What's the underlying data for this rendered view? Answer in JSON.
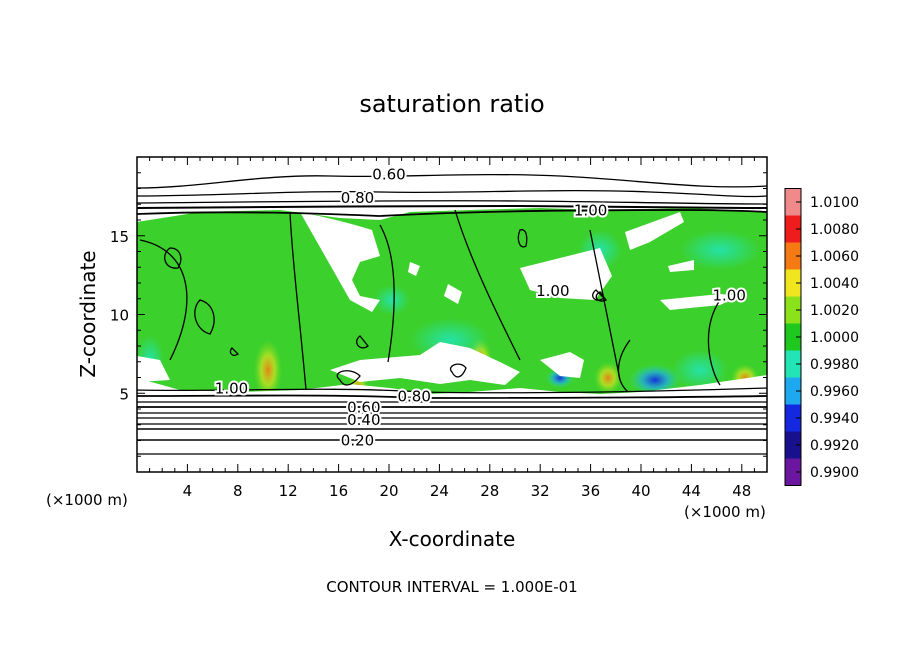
{
  "chart_data": {
    "type": "heatmap",
    "title": "saturation ratio",
    "xlabel": "X-coordinate",
    "ylabel": "Z-coordinate",
    "x_unit_left": "(×1000 m)",
    "x_unit_right": "(×1000 m)",
    "xlim": [
      0,
      50
    ],
    "ylim": [
      0,
      20
    ],
    "x_ticks": [
      4,
      8,
      12,
      16,
      20,
      24,
      28,
      32,
      36,
      40,
      44,
      48
    ],
    "y_ticks": [
      5,
      10,
      15
    ],
    "footer": "CONTOUR INTERVAL = 1.000E-01",
    "colorbar": {
      "levels": [
        "1.0100",
        "1.0080",
        "1.0060",
        "1.0040",
        "1.0020",
        "1.0000",
        "0.9980",
        "0.9960",
        "0.9940",
        "0.9920",
        "0.9900"
      ],
      "colors": [
        "#f08a8a",
        "#ee1c1c",
        "#f57a14",
        "#f0e620",
        "#8ce21a",
        "#1ec81e",
        "#22e4b4",
        "#1ea8f0",
        "#1428e0",
        "#18108c",
        "#6a169e"
      ]
    },
    "contour_labels": [
      {
        "text": "0.60",
        "x": 20,
        "z": 18.9
      },
      {
        "text": "0.80",
        "x": 17.5,
        "z": 17.4
      },
      {
        "text": "1.00",
        "x": 36,
        "z": 16.6
      },
      {
        "text": "1.00",
        "x": 33,
        "z": 11.5
      },
      {
        "text": "1.00",
        "x": 47,
        "z": 11.2
      },
      {
        "text": "1.00",
        "x": 7.5,
        "z": 5.3
      },
      {
        "text": "0.80",
        "x": 22,
        "z": 4.8
      },
      {
        "text": "0.60",
        "x": 18,
        "z": 4.1
      },
      {
        "text": "0.40",
        "x": 18,
        "z": 3.3
      },
      {
        "text": "0.20",
        "x": 17.5,
        "z": 2.0
      }
    ]
  }
}
